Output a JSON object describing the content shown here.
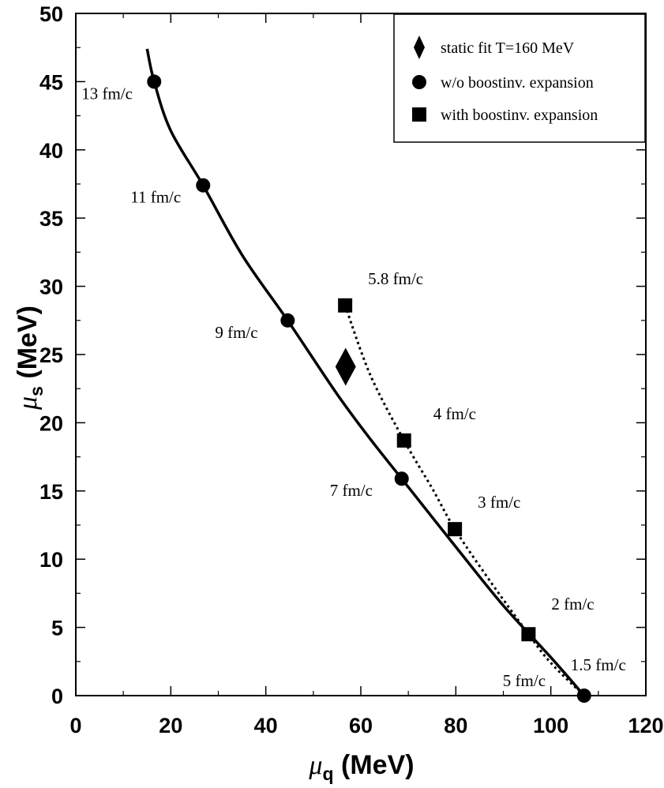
{
  "chart_data": {
    "type": "line",
    "xlabel": {
      "symbol": "μ",
      "sub": "q",
      "unit": " (MeV)"
    },
    "ylabel": {
      "symbol": "μ",
      "sub": "s",
      "unit": " (MeV)"
    },
    "xlim": [
      0,
      120
    ],
    "ylim": [
      0,
      50
    ],
    "x_ticks": [
      0,
      20,
      40,
      60,
      80,
      100,
      120
    ],
    "y_ticks": [
      0,
      5,
      10,
      15,
      20,
      25,
      30,
      35,
      40,
      45,
      50
    ],
    "grid": false,
    "legend_position": "top-right",
    "series": [
      {
        "name": "static fit T=160 MeV",
        "marker": "diamond",
        "points": [
          {
            "x": 56.8,
            "y": 24.1
          }
        ]
      },
      {
        "name": "w/o boostinv. expansion",
        "marker": "circle",
        "line": "solid",
        "curve": [
          [
            15,
            47.4
          ],
          [
            16.5,
            45
          ],
          [
            20,
            41.4
          ],
          [
            26.8,
            37.4
          ],
          [
            35,
            32.3
          ],
          [
            44.6,
            27.5
          ],
          [
            55,
            22.1
          ],
          [
            62,
            18.8
          ],
          [
            68.6,
            15.9
          ],
          [
            80,
            10.9
          ],
          [
            90,
            6.6
          ],
          [
            100,
            2.8
          ],
          [
            107,
            0
          ]
        ],
        "points": [
          {
            "x": 16.5,
            "y": 45,
            "label": "13 fm/c"
          },
          {
            "x": 26.8,
            "y": 37.4,
            "label": "11 fm/c"
          },
          {
            "x": 44.6,
            "y": 27.5,
            "label": "9 fm/c"
          },
          {
            "x": 68.6,
            "y": 15.9,
            "label": "7 fm/c"
          },
          {
            "x": 107,
            "y": 0,
            "label": "5 fm/c"
          }
        ]
      },
      {
        "name": "with boostinv. expansion",
        "marker": "square",
        "line": "dotted",
        "curve": [
          [
            56.7,
            28.6
          ],
          [
            62,
            23.5
          ],
          [
            69.1,
            18.7
          ],
          [
            75,
            15.2
          ],
          [
            79.8,
            12.2
          ],
          [
            87,
            8.5
          ],
          [
            95.3,
            4.5
          ],
          [
            100,
            2.4
          ],
          [
            107,
            0
          ]
        ],
        "points": [
          {
            "x": 56.7,
            "y": 28.6,
            "label": "5.8 fm/c"
          },
          {
            "x": 69.1,
            "y": 18.7,
            "label": "4 fm/c"
          },
          {
            "x": 79.8,
            "y": 12.2,
            "label": "3 fm/c"
          },
          {
            "x": 95.3,
            "y": 4.5,
            "label": "2 fm/c"
          },
          {
            "x": 107,
            "y": 0,
            "label": "1.5 fm/c"
          }
        ]
      }
    ]
  }
}
